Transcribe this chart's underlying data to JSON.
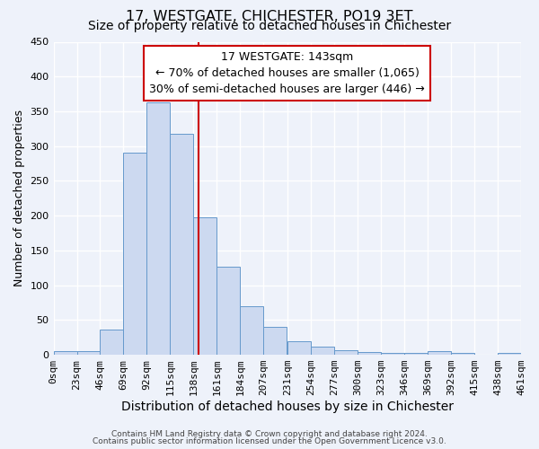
{
  "title": "17, WESTGATE, CHICHESTER, PO19 3ET",
  "subtitle": "Size of property relative to detached houses in Chichester",
  "xlabel": "Distribution of detached houses by size in Chichester",
  "ylabel": "Number of detached properties",
  "bin_labels": [
    "0sqm",
    "23sqm",
    "46sqm",
    "69sqm",
    "92sqm",
    "115sqm",
    "138sqm",
    "161sqm",
    "184sqm",
    "207sqm",
    "231sqm",
    "254sqm",
    "277sqm",
    "300sqm",
    "323sqm",
    "346sqm",
    "369sqm",
    "392sqm",
    "415sqm",
    "438sqm",
    "461sqm"
  ],
  "bar_heights": [
    5,
    5,
    36,
    290,
    363,
    318,
    197,
    127,
    70,
    40,
    20,
    12,
    6,
    4,
    3,
    3,
    5,
    3,
    0,
    3
  ],
  "bar_color": "#ccd9f0",
  "bar_edge_color": "#6699cc",
  "vline_x": 143,
  "vline_color": "#cc0000",
  "bin_edges": [
    0,
    23,
    46,
    69,
    92,
    115,
    138,
    161,
    184,
    207,
    231,
    254,
    277,
    300,
    323,
    346,
    369,
    392,
    415,
    438,
    461
  ],
  "ylim": [
    0,
    450
  ],
  "annotation_title": "17 WESTGATE: 143sqm",
  "annotation_line1": "← 70% of detached houses are smaller (1,065)",
  "annotation_line2": "30% of semi-detached houses are larger (446) →",
  "annotation_box_color": "#ffffff",
  "annotation_box_edge": "#cc0000",
  "footer1": "Contains HM Land Registry data © Crown copyright and database right 2024.",
  "footer2": "Contains public sector information licensed under the Open Government Licence v3.0.",
  "bg_color": "#eef2fa",
  "grid_color": "#ffffff",
  "title_fontsize": 11.5,
  "subtitle_fontsize": 10,
  "tick_fontsize": 8,
  "ylabel_fontsize": 9,
  "xlabel_fontsize": 10,
  "footer_fontsize": 6.5
}
